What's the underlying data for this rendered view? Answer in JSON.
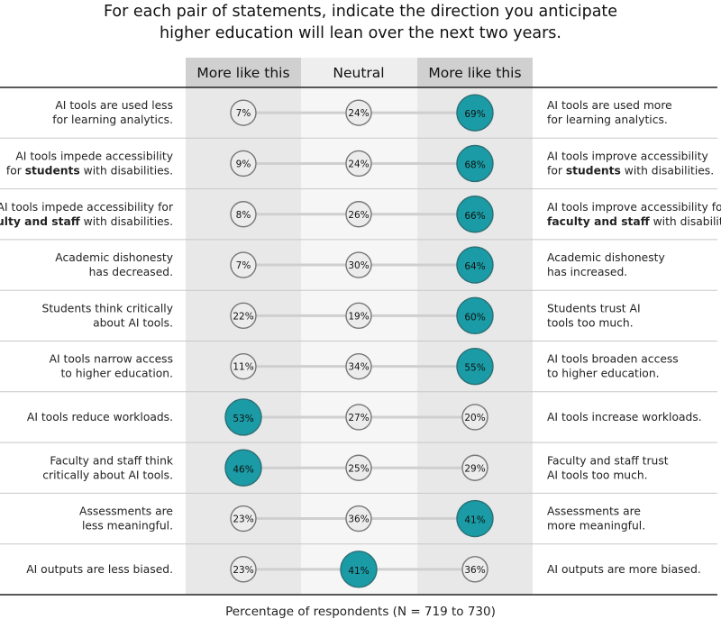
{
  "chart_data": {
    "type": "dot",
    "title": [
      "For each pair of statements, indicate the direction you anticipate",
      "higher education will lean over the next two years."
    ],
    "columns": [
      "More like this",
      "Neutral",
      "More like this"
    ],
    "xlabel": "Percentage of respondents (N = 719 to 730)",
    "highlight_color": "#1a9ba5",
    "rows": [
      {
        "left": [
          [
            {
              "t": "AI tools are used less"
            }
          ],
          [
            {
              "t": "for learning analytics."
            }
          ]
        ],
        "right": [
          [
            {
              "t": "AI tools are used more"
            }
          ],
          [
            {
              "t": "for learning analytics."
            }
          ]
        ],
        "values": [
          7,
          24,
          69
        ]
      },
      {
        "left": [
          [
            {
              "t": "AI tools impede accessibility"
            }
          ],
          [
            {
              "t": "for "
            },
            {
              "t": "students",
              "b": true
            },
            {
              "t": " with disabilities."
            }
          ]
        ],
        "right": [
          [
            {
              "t": "AI tools improve accessibility"
            }
          ],
          [
            {
              "t": "for "
            },
            {
              "t": "students",
              "b": true
            },
            {
              "t": " with disabilities."
            }
          ]
        ],
        "values": [
          9,
          24,
          68
        ]
      },
      {
        "left": [
          [
            {
              "t": "AI tools impede accessibility for"
            }
          ],
          [
            {
              "t": "faculty and staff",
              "b": true
            },
            {
              "t": " with disabilities."
            }
          ]
        ],
        "right": [
          [
            {
              "t": "AI tools improve accessibility for"
            }
          ],
          [
            {
              "t": "faculty and staff",
              "b": true
            },
            {
              "t": " with disabilities."
            }
          ]
        ],
        "values": [
          8,
          26,
          66
        ]
      },
      {
        "left": [
          [
            {
              "t": "Academic dishonesty"
            }
          ],
          [
            {
              "t": "has decreased."
            }
          ]
        ],
        "right": [
          [
            {
              "t": "Academic dishonesty"
            }
          ],
          [
            {
              "t": "has increased."
            }
          ]
        ],
        "values": [
          7,
          30,
          64
        ]
      },
      {
        "left": [
          [
            {
              "t": "Students think critically"
            }
          ],
          [
            {
              "t": "about AI tools."
            }
          ]
        ],
        "right": [
          [
            {
              "t": "Students trust AI"
            }
          ],
          [
            {
              "t": "tools too much."
            }
          ]
        ],
        "values": [
          22,
          19,
          60
        ]
      },
      {
        "left": [
          [
            {
              "t": "AI tools narrow access"
            }
          ],
          [
            {
              "t": "to higher education."
            }
          ]
        ],
        "right": [
          [
            {
              "t": "AI tools broaden access"
            }
          ],
          [
            {
              "t": "to higher education."
            }
          ]
        ],
        "values": [
          11,
          34,
          55
        ]
      },
      {
        "left": [
          [
            {
              "t": "AI tools reduce workloads."
            }
          ]
        ],
        "right": [
          [
            {
              "t": "AI tools increase workloads."
            }
          ]
        ],
        "values": [
          53,
          27,
          20
        ]
      },
      {
        "left": [
          [
            {
              "t": "Faculty and staff think"
            }
          ],
          [
            {
              "t": "critically about AI tools."
            }
          ]
        ],
        "right": [
          [
            {
              "t": "Faculty and staff trust"
            }
          ],
          [
            {
              "t": "AI tools too much."
            }
          ]
        ],
        "values": [
          46,
          25,
          29
        ]
      },
      {
        "left": [
          [
            {
              "t": "Assessments are"
            }
          ],
          [
            {
              "t": "less meaningful."
            }
          ]
        ],
        "right": [
          [
            {
              "t": "Assessments are"
            }
          ],
          [
            {
              "t": "more meaningful."
            }
          ]
        ],
        "values": [
          23,
          36,
          41
        ]
      },
      {
        "left": [
          [
            {
              "t": "AI outputs are less biased."
            }
          ]
        ],
        "right": [
          [
            {
              "t": "AI outputs are more biased."
            }
          ]
        ],
        "values": [
          23,
          41,
          36
        ]
      }
    ]
  }
}
